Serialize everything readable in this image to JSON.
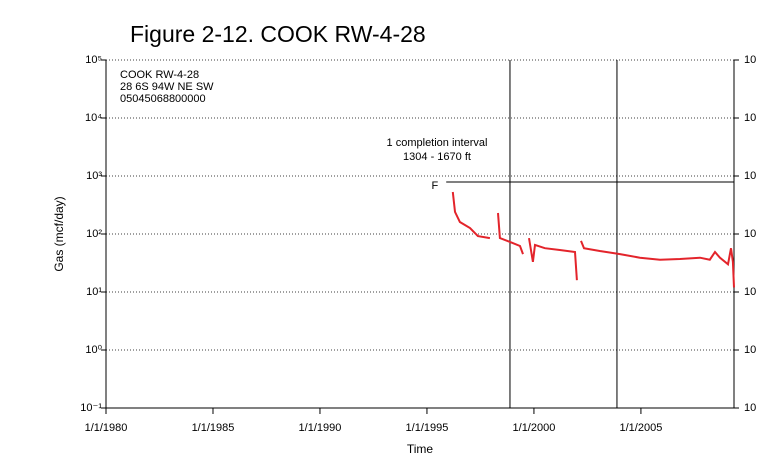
{
  "chart_data": {
    "type": "line",
    "title": "Figure 2-12.  COOK RW-4-28",
    "x_label": "Time",
    "y_label": "Gas (mcf/day)",
    "log_y": true,
    "grid": true,
    "xlim": [
      1980,
      2009.35
    ],
    "xticks": [
      {
        "value": 1980,
        "label": "1/1/1980"
      },
      {
        "value": 1985,
        "label": "1/1/1985"
      },
      {
        "value": 1990,
        "label": "1/1/1990"
      },
      {
        "value": 1995,
        "label": "1/1/1995"
      },
      {
        "value": 2000,
        "label": "1/1/2000"
      },
      {
        "value": 2005,
        "label": "1/1/2005"
      }
    ],
    "ylim": [
      0.1,
      100000
    ],
    "yticks": [
      {
        "value": 0.1,
        "label": "10⁻¹"
      },
      {
        "value": 1,
        "label": "10⁰"
      },
      {
        "value": 10,
        "label": "10¹"
      },
      {
        "value": 100,
        "label": "10²"
      },
      {
        "value": 1000,
        "label": "10³"
      },
      {
        "value": 10000,
        "label": "10⁴"
      },
      {
        "value": 100000,
        "label": "10⁵"
      }
    ],
    "y2lim": [
      0.1,
      100000
    ],
    "y2ticks": [
      {
        "value": 0.1,
        "label": "10"
      },
      {
        "value": 1,
        "label": "10"
      },
      {
        "value": 10,
        "label": "10"
      },
      {
        "value": 100,
        "label": "10"
      },
      {
        "value": 1000,
        "label": "10"
      },
      {
        "value": 10000,
        "label": "10"
      },
      {
        "value": 100000,
        "label": "10"
      }
    ],
    "well_info": [
      "COOK RW-4-28",
      "28 6S 94W NE SW",
      "05045068800000"
    ],
    "completion_note": [
      "1 completion interval",
      "1304 - 1670 ft"
    ],
    "vertical_lines": [
      1998.88,
      2003.88
    ],
    "marker_line": {
      "label": "F",
      "value": 790,
      "x_start": 1995.9
    },
    "series": [
      {
        "name": "Gas",
        "color": "#e3242b",
        "x": [
          1996.21,
          1996.31,
          1996.54,
          1997.01,
          1997.38,
          1997.94,
          1998.1,
          1998.32,
          1998.41,
          1998.88,
          1999.35,
          1999.49,
          1999.6,
          1999.77,
          1999.95,
          2000.05,
          2000.51,
          2001.21,
          2001.92,
          2002.01,
          2002.1,
          2002.2,
          2002.34,
          2003.08,
          2004.02,
          2004.95,
          2005.89,
          2006.82,
          2007.76,
          2008.22,
          2008.46,
          2008.69,
          2009.07,
          2009.21,
          2009.3,
          2009.35
        ],
        "values": [
          530,
          240,
          161,
          127,
          92,
          85,
          null,
          230,
          85,
          73,
          62,
          45,
          null,
          85,
          33,
          65,
          57,
          53,
          49,
          16,
          null,
          76,
          57,
          51,
          45,
          39,
          36,
          37,
          39,
          36,
          49,
          39,
          30,
          57,
          33,
          12
        ]
      }
    ]
  }
}
